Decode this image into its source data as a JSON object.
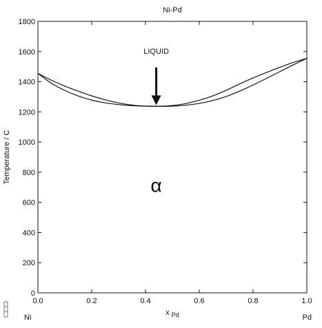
{
  "chart_data": {
    "type": "line",
    "title": "Ni-Pd",
    "xlabel": "x",
    "xlabel_subscript": "Pd",
    "ylabel": "Temperature / C",
    "xlim": [
      0,
      1
    ],
    "ylim": [
      0,
      1800
    ],
    "x_ticks": [
      0.0,
      0.2,
      0.4,
      0.6,
      0.8,
      1.0
    ],
    "x_tick_labels": [
      "0.0",
      "0.2",
      "0.4",
      "0.6",
      "0.8",
      "1.0"
    ],
    "y_ticks": [
      0,
      200,
      400,
      600,
      800,
      1000,
      1200,
      1400,
      1600,
      1800
    ],
    "y_tick_labels": [
      "0",
      "200",
      "400",
      "600",
      "800",
      "1000",
      "1200",
      "1400",
      "1600",
      "1800"
    ],
    "grid": false,
    "endpoint_labels": {
      "left": "Ni",
      "right": "Pd"
    },
    "series": [
      {
        "x": [
          0.0,
          0.05,
          0.1,
          0.15,
          0.2,
          0.25,
          0.3,
          0.35,
          0.4,
          0.45,
          0.5,
          0.55,
          0.6,
          0.65,
          0.7,
          0.75,
          0.8,
          0.85,
          0.9,
          0.95,
          1.0
        ],
        "y": [
          1455,
          1410,
          1371,
          1337,
          1306,
          1280,
          1259,
          1245,
          1238,
          1237,
          1242,
          1255,
          1277,
          1306,
          1343,
          1385,
          1425,
          1461,
          1496,
          1528,
          1555
        ]
      },
      {
        "x": [
          0.0,
          0.05,
          0.1,
          0.15,
          0.2,
          0.25,
          0.3,
          0.35,
          0.4,
          0.45,
          0.5,
          0.55,
          0.6,
          0.65,
          0.7,
          0.75,
          0.8,
          0.85,
          0.9,
          0.95,
          1.0
        ],
        "y": [
          1455,
          1390,
          1342,
          1305,
          1278,
          1260,
          1248,
          1241,
          1238,
          1237,
          1238,
          1244,
          1256,
          1275,
          1302,
          1337,
          1378,
          1422,
          1467,
          1512,
          1555
        ]
      }
    ],
    "annotations": [
      {
        "text": "LIQUID",
        "x": 0.44,
        "y": 1585
      },
      {
        "text": "α",
        "x": 0.44,
        "y": 670
      }
    ],
    "arrow": {
      "x": 0.44,
      "y_from": 1495,
      "y_to": 1245
    }
  }
}
